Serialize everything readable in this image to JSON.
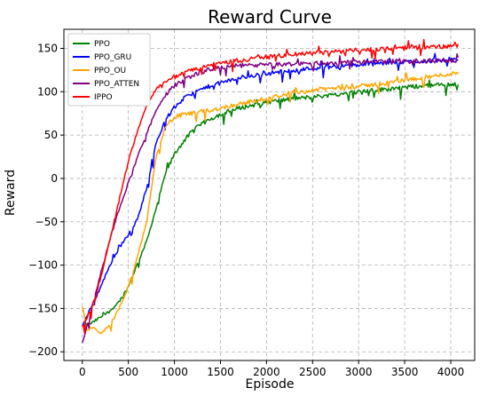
{
  "chart_data": {
    "type": "line",
    "title": "Reward Curve",
    "xlabel": "Episode",
    "ylabel": "Reward",
    "xlim": [
      -200,
      4260
    ],
    "ylim": [
      -210,
      172
    ],
    "xticks": [
      0,
      500,
      1000,
      1500,
      2000,
      2500,
      3000,
      3500,
      4000
    ],
    "yticks": [
      -200,
      -150,
      -100,
      -50,
      0,
      50,
      100,
      150
    ],
    "grid": true,
    "grid_style": "dashed",
    "legend_position": "top-left",
    "series": [
      {
        "name": "PPO",
        "color": "#008000",
        "x": [
          0,
          100,
          200,
          300,
          400,
          500,
          600,
          700,
          800,
          900,
          1000,
          1100,
          1200,
          1300,
          1400,
          1500,
          1700,
          2000,
          2300,
          2600,
          3000,
          3300,
          3600,
          3900,
          4080
        ],
        "y": [
          -170,
          -167,
          -160,
          -153,
          -142,
          -125,
          -98,
          -72,
          -35,
          5,
          28,
          43,
          55,
          63,
          69,
          74,
          81,
          88,
          92,
          95,
          100,
          103,
          106,
          108,
          109
        ]
      },
      {
        "name": "PPO_GRU",
        "color": "#0000ff",
        "x": [
          0,
          100,
          200,
          300,
          400,
          500,
          600,
          700,
          800,
          900,
          1000,
          1100,
          1200,
          1300,
          1400,
          1500,
          1700,
          2000,
          2300,
          2600,
          3000,
          3300,
          3600,
          3900,
          4080
        ],
        "y": [
          -170,
          -148,
          -125,
          -100,
          -80,
          -65,
          -47,
          -10,
          40,
          67,
          82,
          92,
          98,
          103,
          107,
          110,
          116,
          121,
          125,
          128,
          131,
          133,
          135,
          136,
          137
        ]
      },
      {
        "name": "PPO_OU",
        "color": "#ffa500",
        "x": [
          0,
          50,
          100,
          200,
          300,
          400,
          500,
          600,
          700,
          800,
          900,
          1000,
          1100,
          1200,
          1300,
          1400,
          1500,
          1700,
          2000,
          2300,
          2600,
          3000,
          3300,
          3600,
          3900,
          4080
        ],
        "y": [
          -148,
          -176,
          -172,
          -178,
          -170,
          -150,
          -125,
          -90,
          -50,
          25,
          60,
          70,
          74,
          75,
          77,
          79,
          81,
          86,
          92,
          99,
          103,
          106,
          110,
          115,
          119,
          122
        ]
      },
      {
        "name": "PPO_ATTEN",
        "color": "#800080",
        "x": [
          0,
          100,
          200,
          300,
          400,
          500,
          600,
          700,
          800,
          900,
          1000,
          1100,
          1200,
          1300,
          1400,
          1500,
          1700,
          2000,
          2300,
          2600,
          3000,
          3300,
          3600,
          3900,
          4080
        ],
        "y": [
          -190,
          -150,
          -110,
          -70,
          -35,
          -5,
          25,
          52,
          78,
          95,
          107,
          114,
          119,
          123,
          126,
          128,
          130,
          131,
          132,
          133,
          134,
          135,
          135,
          136,
          136
        ]
      },
      {
        "name": "IPPO",
        "color": "#ff0000",
        "x": [
          0,
          100,
          200,
          300,
          400,
          500,
          600,
          700,
          800,
          900,
          1000,
          1100,
          1200,
          1300,
          1400,
          1500,
          1700,
          2000,
          2300,
          2600,
          3000,
          3300,
          3600,
          3900,
          4080
        ],
        "y": [
          -172,
          -150,
          -115,
          -70,
          -25,
          20,
          55,
          85,
          103,
          112,
          117,
          121,
          125,
          128,
          131,
          133,
          136,
          140,
          143,
          145,
          148,
          150,
          151,
          152,
          153
        ]
      }
    ]
  }
}
